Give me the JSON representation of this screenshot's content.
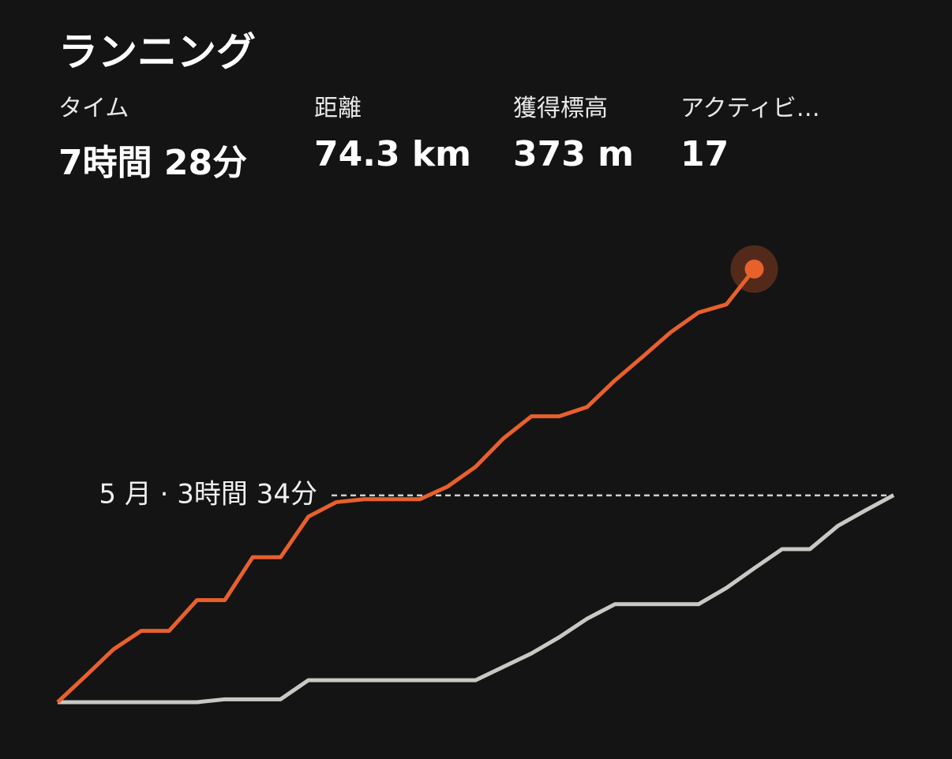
{
  "header": {
    "title": "ランニング"
  },
  "stats": [
    {
      "label": "タイム",
      "value": "7時間 28分"
    },
    {
      "label": "距離",
      "value": "74.3 km"
    },
    {
      "label": "獲得標高",
      "value": "373 m"
    },
    {
      "label": "アクティビ…",
      "value": "17"
    }
  ],
  "chart_data": {
    "type": "line",
    "xlim": [
      1,
      31
    ],
    "ylim": [
      0,
      7.47
    ],
    "reference": {
      "value": 3.5667,
      "label": "5 月 · 3時間 34分",
      "color": "#d0d0cc"
    },
    "series": [
      {
        "color": "#c9c9c4",
        "x": [
          1,
          2,
          3,
          4,
          5,
          6,
          7,
          8,
          9,
          10,
          11,
          12,
          13,
          14,
          15,
          16,
          17,
          18,
          19,
          20,
          21,
          22,
          23,
          24,
          25,
          26,
          27,
          28,
          29,
          30,
          31
        ],
        "values": [
          0,
          0,
          0,
          0,
          0,
          0,
          0.05,
          0.05,
          0.05,
          0.38,
          0.38,
          0.38,
          0.38,
          0.38,
          0.38,
          0.38,
          0.61,
          0.84,
          1.12,
          1.44,
          1.69,
          1.69,
          1.69,
          1.69,
          1.97,
          2.31,
          2.64,
          2.64,
          3.04,
          3.31,
          3.57
        ]
      },
      {
        "color": "#e8602c",
        "x": [
          1,
          2,
          3,
          4,
          5,
          6,
          7,
          8,
          9,
          10,
          11,
          12,
          13,
          14,
          15,
          16,
          17,
          18,
          19,
          20,
          21,
          22,
          23,
          24,
          25,
          26
        ],
        "values": [
          0,
          0.45,
          0.91,
          1.23,
          1.23,
          1.76,
          1.76,
          2.5,
          2.5,
          3.2,
          3.45,
          3.5,
          3.5,
          3.5,
          3.72,
          4.06,
          4.55,
          4.93,
          4.93,
          5.09,
          5.55,
          5.96,
          6.38,
          6.72,
          6.86,
          7.47
        ]
      }
    ]
  }
}
